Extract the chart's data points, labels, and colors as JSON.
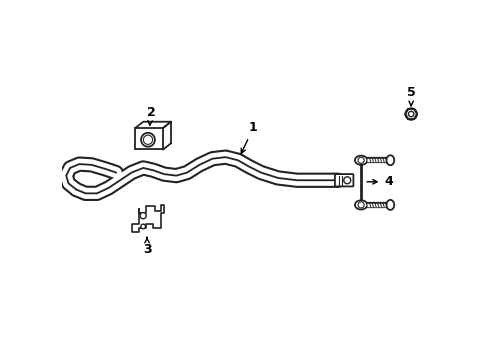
{
  "background_color": "#ffffff",
  "line_color": "#222222",
  "fig_width": 4.89,
  "fig_height": 3.6,
  "dpi": 100,
  "bar_tube_lw_outer": 11,
  "bar_tube_lw_white": 8,
  "bar_tube_lw_inner": 1.3
}
